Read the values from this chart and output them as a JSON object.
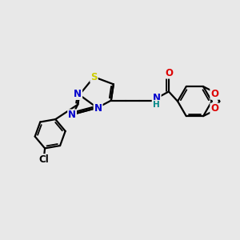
{
  "bg_color": "#e8e8e8",
  "bond_color": "#000000",
  "atom_colors": {
    "S": "#cccc00",
    "N": "#0000cc",
    "O": "#dd0000",
    "Cl": "#000000",
    "C": "#000000",
    "H": "#008888"
  },
  "figsize": [
    3.0,
    3.0
  ],
  "dpi": 100,
  "lw": 1.6,
  "lw_double": 1.3
}
